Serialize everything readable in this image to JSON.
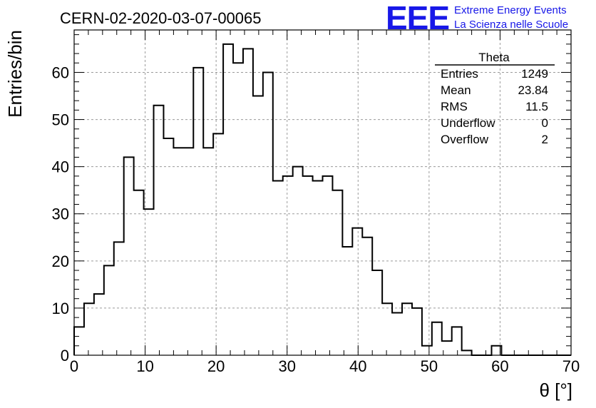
{
  "chart_data": {
    "type": "bar",
    "title": "CERN-02-2020-03-07-00065",
    "xlabel": "θ [°]",
    "ylabel": "Entries/bin",
    "xlim": [
      0,
      70
    ],
    "ylim": [
      0,
      69
    ],
    "x_ticks": [
      0,
      10,
      20,
      30,
      40,
      50,
      60,
      70
    ],
    "y_ticks": [
      0,
      10,
      20,
      30,
      40,
      50,
      60
    ],
    "grid": true,
    "bin_width": 1.4,
    "bin_edges_start": 0,
    "values": [
      6,
      11,
      13,
      19,
      24,
      42,
      35,
      31,
      53,
      46,
      44,
      44,
      61,
      44,
      47,
      66,
      62,
      65,
      55,
      60,
      37,
      38,
      40,
      38,
      37,
      38,
      35,
      23,
      27,
      25,
      18,
      11,
      9,
      11,
      10,
      2,
      7,
      3,
      6,
      1,
      0,
      0,
      2,
      0,
      0,
      0,
      0,
      0,
      0,
      0
    ],
    "stats": {
      "name": "Theta",
      "rows": [
        {
          "label": "Entries",
          "value": "1249"
        },
        {
          "label": "Mean",
          "value": "23.84"
        },
        {
          "label": "RMS",
          "value": "11.5"
        },
        {
          "label": "Underflow",
          "value": "0"
        },
        {
          "label": "Overflow",
          "value": "2"
        }
      ]
    },
    "logo": {
      "text": "EEE",
      "line1": "Extreme Energy Events",
      "line2": "La Scienza nelle Scuole",
      "color": "#1818e8"
    }
  }
}
